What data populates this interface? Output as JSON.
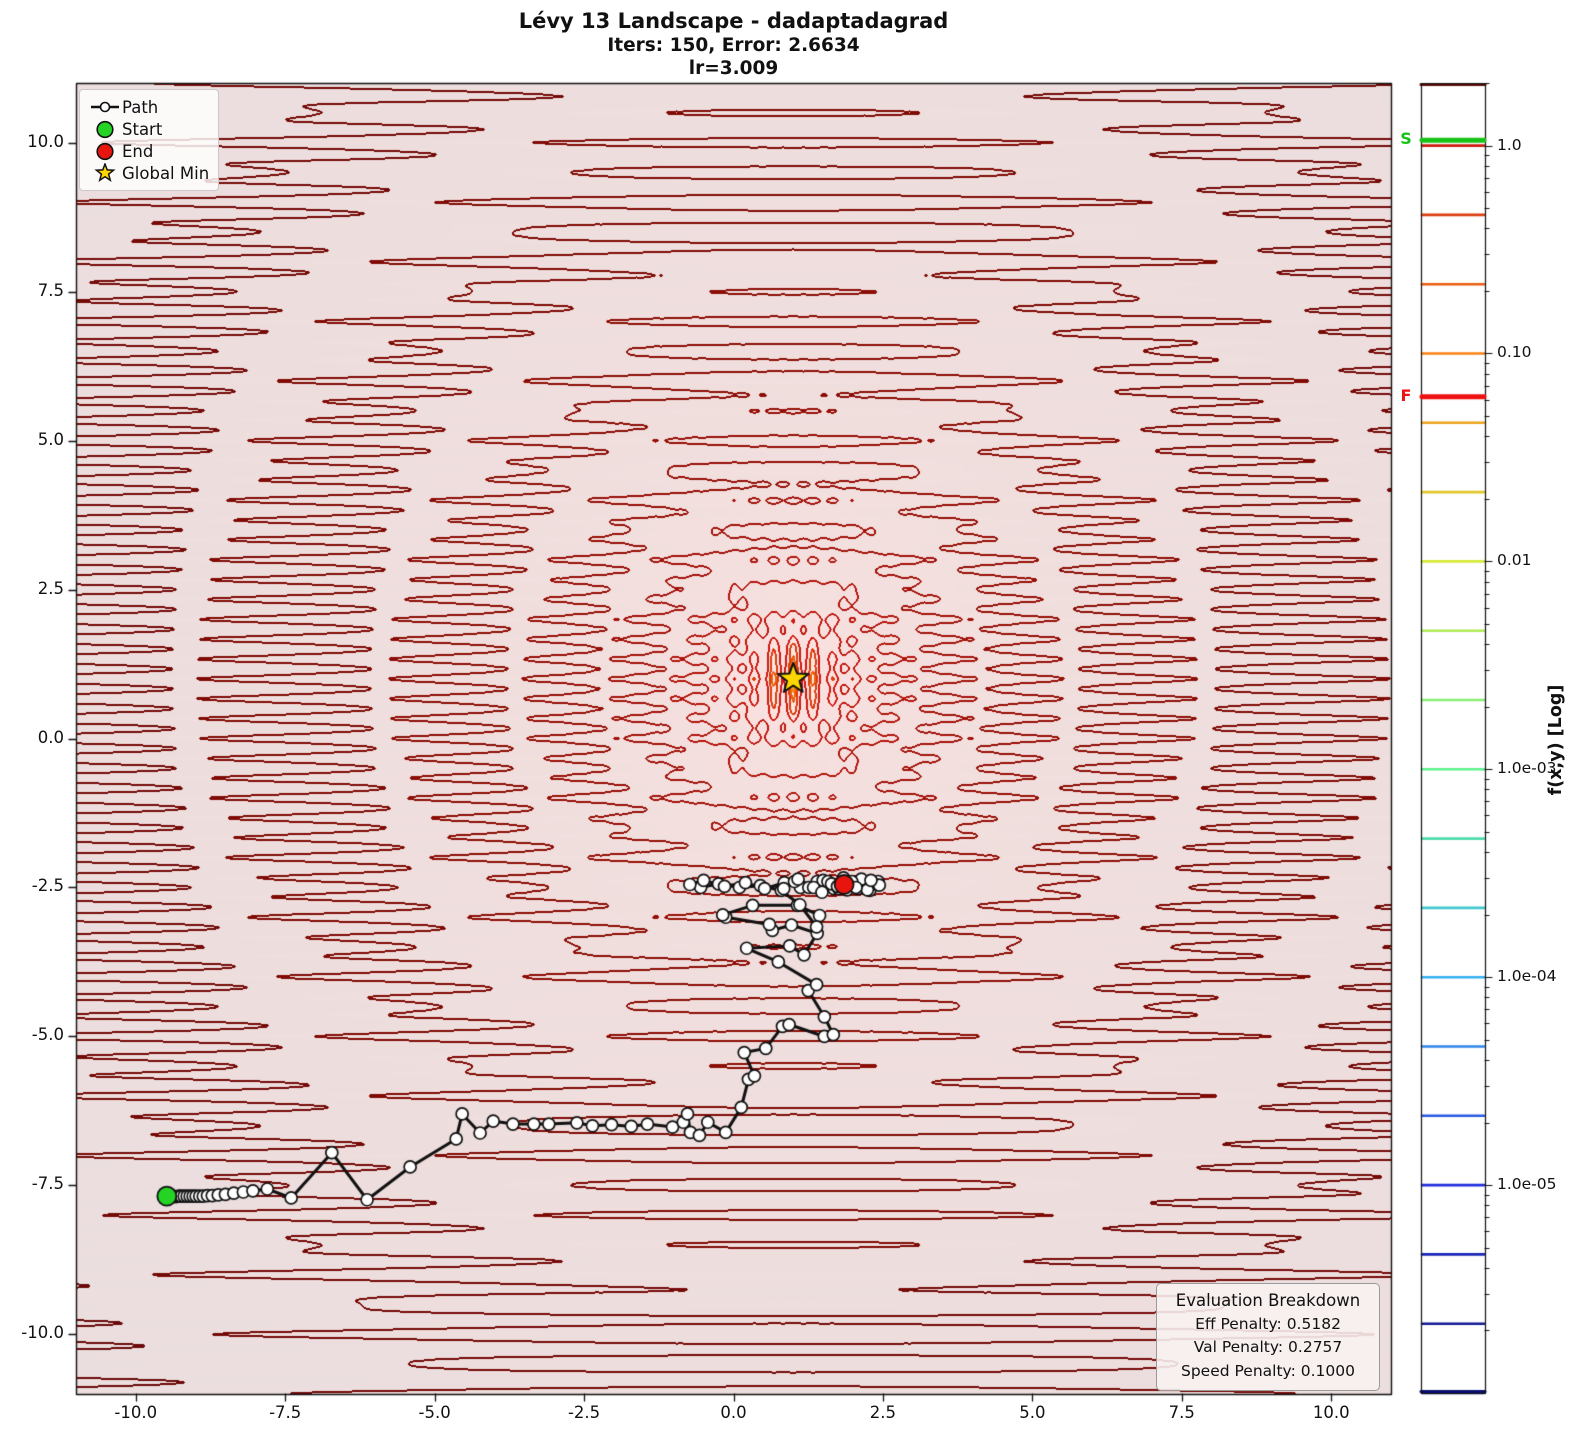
{
  "title": {
    "line1": "Lévy 13 Landscape - dadaptadagrad",
    "line2": "Iters: 150, Error: 2.6634",
    "line3": "lr=3.009"
  },
  "legend": {
    "items": [
      {
        "label": "Path",
        "marker": "path-line",
        "color": "#111111"
      },
      {
        "label": "Start",
        "marker": "green-circle",
        "color": "#24d324"
      },
      {
        "label": "End",
        "marker": "red-circle",
        "color": "#e8150f"
      },
      {
        "label": "Global Min",
        "marker": "gold-star",
        "color": "#ffd700"
      }
    ]
  },
  "axes": {
    "xlim": [
      -11,
      11
    ],
    "ylim": [
      -11,
      11
    ],
    "x_tick_labels": [
      "-10.0",
      "-7.5",
      "-5.0",
      "-2.5",
      "0.0",
      "2.5",
      "5.0",
      "7.5",
      "10.0"
    ],
    "x_tick_values": [
      -10,
      -7.5,
      -5,
      -2.5,
      0,
      2.5,
      5,
      7.5,
      10
    ],
    "y_tick_labels": [
      "10.0",
      "7.5",
      "5.0",
      "2.5",
      "0.0",
      "-2.5",
      "-5.0",
      "-7.5",
      "-10.0"
    ],
    "y_tick_values": [
      10,
      7.5,
      5,
      2.5,
      0,
      -2.5,
      -5,
      -7.5,
      -10
    ]
  },
  "colorbar": {
    "label": "f(x,y) [Log]",
    "range_low": 1e-06,
    "range_high": 2.0,
    "tick_labels": [
      "1.0",
      "0.10",
      "0.01",
      "1.0e-03",
      "1.0e-04",
      "1.0e-05"
    ],
    "tick_values": [
      1,
      0.1,
      0.01,
      0.001,
      0.0001,
      1e-05
    ],
    "start_marker": {
      "label": "S",
      "value": 1.06,
      "color": "#17c217"
    },
    "end_marker": {
      "label": "F",
      "value": 0.062,
      "color": "#ee1111"
    }
  },
  "eval_box": {
    "title": "Evaluation Breakdown",
    "lines": [
      "Eff Penalty: 0.5182",
      "Val Penalty: 0.2757",
      "Speed Penalty: 0.1000"
    ]
  },
  "chart_data": {
    "type": "contour",
    "function": "levy13",
    "formula": "sin^2(3*pi*x) + (x-1)^2*(1+sin^2(3*pi*y)) + (y-1)^2*(1+sin^2(2*pi*y))",
    "xlim": [
      -11,
      11
    ],
    "ylim": [
      -11,
      11
    ],
    "scale": "log10",
    "levels_per_decade": 3,
    "level_min": 1e-06,
    "colormap_stops": [
      [
        -6,
        "#0a0e6e"
      ],
      [
        -5,
        "#2130dd"
      ],
      [
        -4,
        "#35b2f2"
      ],
      [
        -3,
        "#5ef28b"
      ],
      [
        -2,
        "#d8e93b"
      ],
      [
        -1,
        "#f9820f"
      ],
      [
        0,
        "#cf1a10"
      ],
      [
        1,
        "#a3120a"
      ],
      [
        2,
        "#800a04"
      ],
      [
        2.667,
        "#6b0a0a"
      ]
    ],
    "background_tint": 0.135,
    "global_min": [
      1,
      1
    ],
    "start": [
      -9.48,
      -7.68
    ],
    "end": [
      1.85,
      -2.45
    ],
    "path": [
      [
        -9.48,
        -7.68
      ],
      [
        -9.43,
        -7.68
      ],
      [
        -9.38,
        -7.68
      ],
      [
        -9.33,
        -7.69
      ],
      [
        -9.28,
        -7.68
      ],
      [
        -9.24,
        -7.68
      ],
      [
        -9.19,
        -7.68
      ],
      [
        -9.14,
        -7.68
      ],
      [
        -9.09,
        -7.68
      ],
      [
        -9.04,
        -7.68
      ],
      [
        -8.99,
        -7.68
      ],
      [
        -8.93,
        -7.68
      ],
      [
        -8.87,
        -7.68
      ],
      [
        -8.8,
        -7.67
      ],
      [
        -8.72,
        -7.67
      ],
      [
        -8.62,
        -7.66
      ],
      [
        -8.5,
        -7.65
      ],
      [
        -8.36,
        -7.63
      ],
      [
        -8.2,
        -7.61
      ],
      [
        -8.04,
        -7.59
      ],
      [
        -7.8,
        -7.56
      ],
      [
        -7.4,
        -7.71
      ],
      [
        -6.72,
        -6.95
      ],
      [
        -6.13,
        -7.74
      ],
      [
        -5.41,
        -7.19
      ],
      [
        -4.64,
        -6.72
      ],
      [
        -4.54,
        -6.3
      ],
      [
        -4.24,
        -6.62
      ],
      [
        -4.02,
        -6.42
      ],
      [
        -3.69,
        -6.47
      ],
      [
        -3.34,
        -6.47
      ],
      [
        -3.09,
        -6.47
      ],
      [
        -2.62,
        -6.45
      ],
      [
        -2.36,
        -6.5
      ],
      [
        -2.04,
        -6.48
      ],
      [
        -1.71,
        -6.51
      ],
      [
        -1.44,
        -6.47
      ],
      [
        -1.02,
        -6.52
      ],
      [
        -0.84,
        -6.44
      ],
      [
        -0.77,
        -6.3
      ],
      [
        -0.72,
        -6.61
      ],
      [
        -0.57,
        -6.66
      ],
      [
        -0.43,
        -6.44
      ],
      [
        -0.13,
        -6.61
      ],
      [
        0.13,
        -6.19
      ],
      [
        0.25,
        -5.72
      ],
      [
        0.35,
        -5.66
      ],
      [
        0.18,
        -5.27
      ],
      [
        0.54,
        -5.2
      ],
      [
        0.82,
        -4.83
      ],
      [
        0.93,
        -4.8
      ],
      [
        1.52,
        -5.0
      ],
      [
        1.67,
        -4.97
      ],
      [
        1.52,
        -4.67
      ],
      [
        1.25,
        -4.23
      ],
      [
        1.39,
        -4.13
      ],
      [
        0.75,
        -3.75
      ],
      [
        0.22,
        -3.52
      ],
      [
        0.94,
        -3.48
      ],
      [
        1.18,
        -3.63
      ],
      [
        1.4,
        -3.27
      ],
      [
        0.97,
        -3.13
      ],
      [
        0.65,
        -3.22
      ],
      [
        0.6,
        -3.12
      ],
      [
        -0.13,
        -3.0
      ],
      [
        -0.18,
        -2.96
      ],
      [
        0.32,
        -2.8
      ],
      [
        1.07,
        -2.8
      ],
      [
        1.44,
        -2.97
      ],
      [
        1.39,
        -3.16
      ],
      [
        1.11,
        -2.79
      ],
      [
        0.8,
        -2.55
      ],
      [
        0.45,
        -2.47
      ],
      [
        0.1,
        -2.5
      ],
      [
        -0.25,
        -2.44
      ],
      [
        -0.55,
        -2.5
      ],
      [
        -0.73,
        -2.45
      ],
      [
        -0.5,
        -2.38
      ],
      [
        -0.15,
        -2.48
      ],
      [
        0.2,
        -2.42
      ],
      [
        0.52,
        -2.52
      ],
      [
        0.85,
        -2.42
      ],
      [
        1.12,
        -2.5
      ],
      [
        1.4,
        -2.4
      ],
      [
        1.68,
        -2.52
      ],
      [
        1.95,
        -2.42
      ],
      [
        2.2,
        -2.5
      ],
      [
        2.42,
        -2.4
      ],
      [
        2.28,
        -2.55
      ],
      [
        2.02,
        -2.42
      ],
      [
        1.76,
        -2.52
      ],
      [
        1.5,
        -2.38
      ],
      [
        1.26,
        -2.5
      ],
      [
        1.02,
        -2.4
      ],
      [
        0.84,
        -2.52
      ],
      [
        1.08,
        -2.36
      ],
      [
        1.34,
        -2.5
      ],
      [
        1.58,
        -2.4
      ],
      [
        1.84,
        -2.34
      ],
      [
        2.08,
        -2.52
      ],
      [
        2.34,
        -2.44
      ],
      [
        2.14,
        -2.36
      ],
      [
        1.9,
        -2.54
      ],
      [
        1.64,
        -2.44
      ],
      [
        1.48,
        -2.58
      ],
      [
        1.74,
        -2.48
      ],
      [
        1.98,
        -2.4
      ],
      [
        2.24,
        -2.54
      ],
      [
        2.44,
        -2.46
      ],
      [
        2.3,
        -2.38
      ],
      [
        2.05,
        -2.5
      ],
      [
        1.85,
        -2.45
      ]
    ]
  }
}
